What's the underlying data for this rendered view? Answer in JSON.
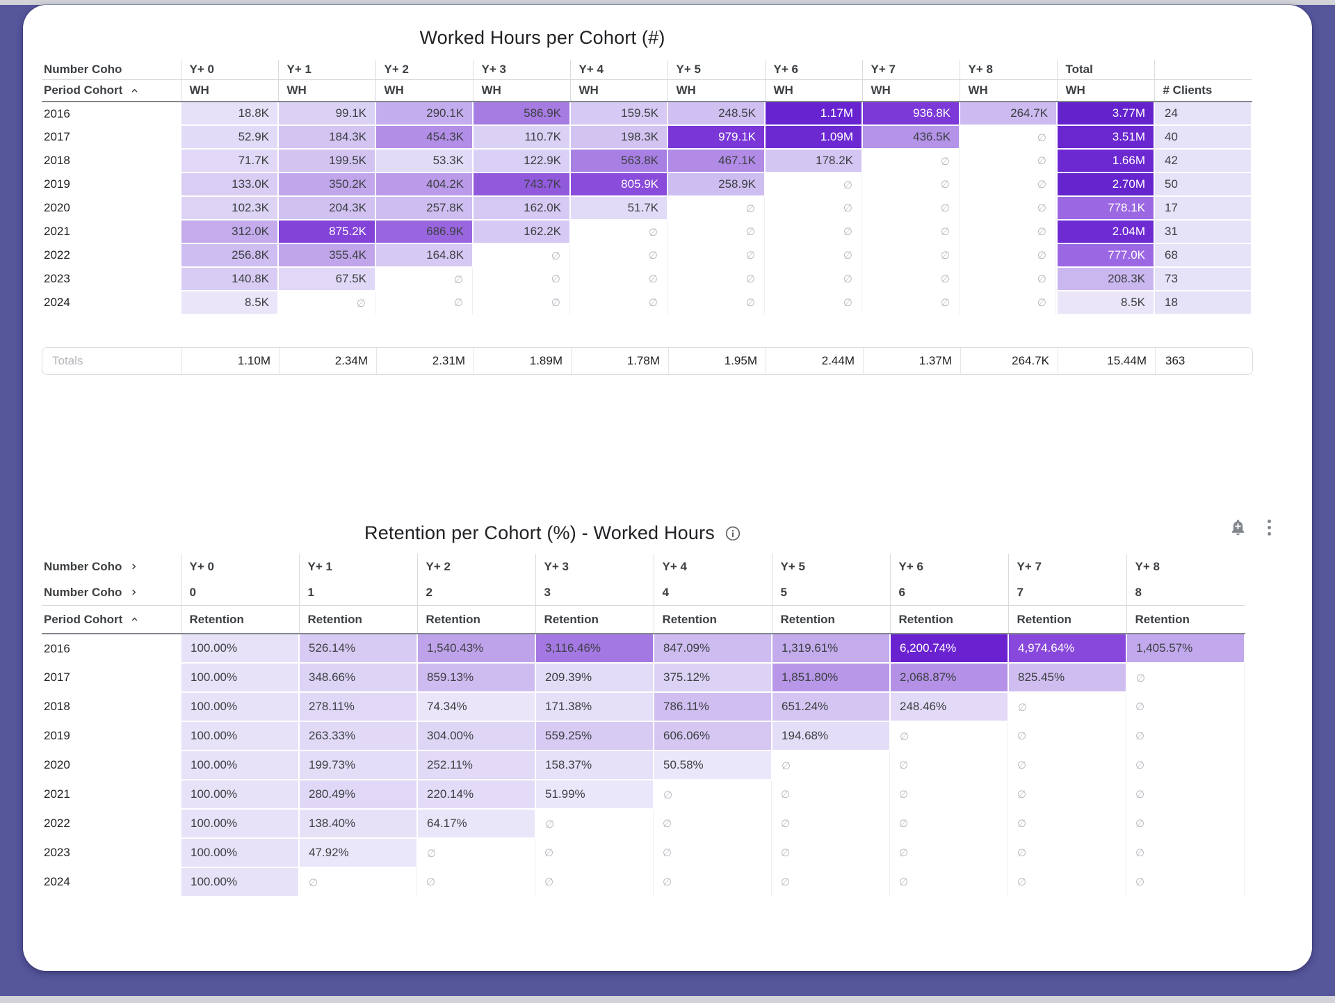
{
  "frame": {
    "background": "#56569b",
    "card_background": "#ffffff"
  },
  "palette": {
    "heatmap_min": "#ebe7fa",
    "heatmap_max": "#6322cc",
    "empty_glyph": "∅",
    "empty_glyph_color": "#b5b8bd"
  },
  "icons": {
    "add_alert": "add-alert-icon",
    "more_options": "more-vert-icon",
    "info": "info-icon",
    "sort_ascending": "chevron-up-icon",
    "expand_group": "chevron-right-icon"
  },
  "table1": {
    "title": "Worked Hours per Cohort (#)",
    "column_group_header": "Number Coho",
    "row_group_header": "Period Cohort",
    "metric_label": "WH",
    "clients_label": "# Clients",
    "columns": [
      "Y+ 0",
      "Y+ 1",
      "Y+ 2",
      "Y+ 3",
      "Y+ 4",
      "Y+ 5",
      "Y+ 6",
      "Y+ 7",
      "Y+ 8",
      "Total"
    ],
    "rows": [
      {
        "year": "2016",
        "clients": "24",
        "cells": [
          {
            "v": "18.8K",
            "bg": "#e6e0f8"
          },
          {
            "v": "99.1K",
            "bg": "#dbd1f5"
          },
          {
            "v": "290.1K",
            "bg": "#c4adee"
          },
          {
            "v": "586.9K",
            "bg": "#a67ce2"
          },
          {
            "v": "159.5K",
            "bg": "#d6c9f3"
          },
          {
            "v": "248.5K",
            "bg": "#cfc0f1"
          },
          {
            "v": "1.17M",
            "bg": "#6823d0",
            "fg": "#ffffff"
          },
          {
            "v": "936.8K",
            "bg": "#7c39d7",
            "fg": "#ffffff"
          },
          {
            "v": "264.7K",
            "bg": "#cdbaf0"
          },
          {
            "v": "3.77M",
            "bg": "#6322cc",
            "fg": "#ffffff"
          }
        ]
      },
      {
        "year": "2017",
        "clients": "40",
        "cells": [
          {
            "v": "52.9K",
            "bg": "#e2dbf7"
          },
          {
            "v": "184.3K",
            "bg": "#d3c4f2"
          },
          {
            "v": "454.3K",
            "bg": "#b28ee7"
          },
          {
            "v": "110.7K",
            "bg": "#dbd1f5"
          },
          {
            "v": "198.3K",
            "bg": "#d2c3f1"
          },
          {
            "v": "979.1K",
            "bg": "#7a36d6",
            "fg": "#ffffff"
          },
          {
            "v": "1.09M",
            "bg": "#6c28d1",
            "fg": "#ffffff"
          },
          {
            "v": "436.5K",
            "bg": "#b493e8"
          },
          null,
          {
            "v": "3.51M",
            "bg": "#6a26cf",
            "fg": "#ffffff"
          }
        ]
      },
      {
        "year": "2018",
        "clients": "42",
        "cells": [
          {
            "v": "71.7K",
            "bg": "#e0d8f6"
          },
          {
            "v": "199.5K",
            "bg": "#d2c3f1"
          },
          {
            "v": "53.3K",
            "bg": "#e2dbf7"
          },
          {
            "v": "122.9K",
            "bg": "#dacff4"
          },
          {
            "v": "563.8K",
            "bg": "#a87fe3"
          },
          {
            "v": "467.1K",
            "bg": "#b18be6"
          },
          {
            "v": "178.2K",
            "bg": "#d4c6f2"
          },
          null,
          null,
          {
            "v": "1.66M",
            "bg": "#6c28d1",
            "fg": "#ffffff"
          }
        ]
      },
      {
        "year": "2019",
        "clients": "50",
        "cells": [
          {
            "v": "133.0K",
            "bg": "#d9cdf4"
          },
          {
            "v": "350.2K",
            "bg": "#c1a6eb"
          },
          {
            "v": "404.2K",
            "bg": "#ba9ae9"
          },
          {
            "v": "743.7K",
            "bg": "#9159dc"
          },
          {
            "v": "805.9K",
            "bg": "#8a4cda",
            "fg": "#ffffff"
          },
          {
            "v": "258.9K",
            "bg": "#cebdf0"
          },
          null,
          null,
          null,
          {
            "v": "2.70M",
            "bg": "#6524cd",
            "fg": "#ffffff"
          }
        ]
      },
      {
        "year": "2020",
        "clients": "17",
        "cells": [
          {
            "v": "102.3K",
            "bg": "#dcd3f5"
          },
          {
            "v": "204.3K",
            "bg": "#d1c1f1"
          },
          {
            "v": "257.8K",
            "bg": "#cebdf0"
          },
          {
            "v": "162.0K",
            "bg": "#d6c9f3"
          },
          {
            "v": "51.7K",
            "bg": "#e2dbf7"
          },
          null,
          null,
          null,
          null,
          {
            "v": "778.1K",
            "bg": "#9c67e2",
            "fg": "#ffffff"
          }
        ]
      },
      {
        "year": "2021",
        "clients": "31",
        "cells": [
          {
            "v": "312.0K",
            "bg": "#c3abec"
          },
          {
            "v": "875.2K",
            "bg": "#8343d8",
            "fg": "#ffffff"
          },
          {
            "v": "686.9K",
            "bg": "#9a66df"
          },
          {
            "v": "162.2K",
            "bg": "#d6c9f3"
          },
          null,
          null,
          null,
          null,
          null,
          {
            "v": "2.04M",
            "bg": "#6e2bd2",
            "fg": "#ffffff"
          }
        ]
      },
      {
        "year": "2022",
        "clients": "68",
        "cells": [
          {
            "v": "256.8K",
            "bg": "#cebdf0"
          },
          {
            "v": "355.4K",
            "bg": "#c0a5ea"
          },
          {
            "v": "164.8K",
            "bg": "#d6c9f3"
          },
          null,
          null,
          null,
          null,
          null,
          null,
          {
            "v": "777.0K",
            "bg": "#9c67e2",
            "fg": "#ffffff"
          }
        ]
      },
      {
        "year": "2023",
        "clients": "73",
        "cells": [
          {
            "v": "140.8K",
            "bg": "#d8ccf4"
          },
          {
            "v": "67.5K",
            "bg": "#e0d8f6"
          },
          null,
          null,
          null,
          null,
          null,
          null,
          null,
          {
            "v": "208.3K",
            "bg": "#cbb7f0"
          }
        ]
      },
      {
        "year": "2024",
        "clients": "18",
        "cells": [
          {
            "v": "8.5K",
            "bg": "#eae5f9"
          },
          null,
          null,
          null,
          null,
          null,
          null,
          null,
          null,
          {
            "v": "8.5K",
            "bg": "#eae5f9"
          }
        ]
      }
    ],
    "totals_label": "Totals",
    "totals": [
      "1.10M",
      "2.34M",
      "2.31M",
      "1.89M",
      "1.78M",
      "1.95M",
      "2.44M",
      "1.37M",
      "264.7K",
      "15.44M"
    ],
    "totals_clients": "363"
  },
  "table2": {
    "title": "Retention per Cohort (%) - Worked Hours",
    "column_group_header": "Number Coho",
    "row_group_header": "Period Cohort",
    "metric_label": "Retention",
    "columns": [
      {
        "label": "Y+ 0",
        "index": "0"
      },
      {
        "label": "Y+ 1",
        "index": "1"
      },
      {
        "label": "Y+ 2",
        "index": "2"
      },
      {
        "label": "Y+ 3",
        "index": "3"
      },
      {
        "label": "Y+ 4",
        "index": "4"
      },
      {
        "label": "Y+ 5",
        "index": "5"
      },
      {
        "label": "Y+ 6",
        "index": "6"
      },
      {
        "label": "Y+ 7",
        "index": "7"
      },
      {
        "label": "Y+ 8",
        "index": "8"
      }
    ],
    "rows": [
      {
        "year": "2016",
        "cells": [
          {
            "v": "100.00%",
            "bg": "#e7e2f8"
          },
          {
            "v": "526.14%",
            "bg": "#d8cbf3"
          },
          {
            "v": "1,540.43%",
            "bg": "#bfa3ea"
          },
          {
            "v": "3,116.46%",
            "bg": "#a478e2"
          },
          {
            "v": "847.09%",
            "bg": "#cebcf0"
          },
          {
            "v": "1,319.61%",
            "bg": "#c3abec"
          },
          {
            "v": "6,200.74%",
            "bg": "#6a22d1",
            "fg": "#ffffff"
          },
          {
            "v": "4,974.64%",
            "bg": "#8948dc",
            "fg": "#ffffff"
          },
          {
            "v": "1,405.57%",
            "bg": "#c2a8ec"
          }
        ]
      },
      {
        "year": "2017",
        "cells": [
          {
            "v": "100.00%",
            "bg": "#e7e2f8"
          },
          {
            "v": "348.66%",
            "bg": "#ddd3f5"
          },
          {
            "v": "859.13%",
            "bg": "#cebbef"
          },
          {
            "v": "209.39%",
            "bg": "#e3dcf7"
          },
          {
            "v": "375.12%",
            "bg": "#dcd2f5"
          },
          {
            "v": "1,851.80%",
            "bg": "#b897e8"
          },
          {
            "v": "2,068.87%",
            "bg": "#b491e7"
          },
          {
            "v": "825.45%",
            "bg": "#cfbdf0"
          },
          null
        ]
      },
      {
        "year": "2018",
        "cells": [
          {
            "v": "100.00%",
            "bg": "#e7e2f8"
          },
          {
            "v": "278.11%",
            "bg": "#e0d8f6"
          },
          {
            "v": "74.34%",
            "bg": "#eae5f9"
          },
          {
            "v": "171.38%",
            "bg": "#e5dff7"
          },
          {
            "v": "786.11%",
            "bg": "#d0bef0"
          },
          {
            "v": "651.24%",
            "bg": "#d4c5f2"
          },
          {
            "v": "248.46%",
            "bg": "#e2daf6"
          },
          null,
          null
        ]
      },
      {
        "year": "2019",
        "cells": [
          {
            "v": "100.00%",
            "bg": "#e7e2f8"
          },
          {
            "v": "263.33%",
            "bg": "#e1d9f6"
          },
          {
            "v": "304.00%",
            "bg": "#dfd6f5"
          },
          {
            "v": "559.25%",
            "bg": "#d7caf3"
          },
          {
            "v": "606.06%",
            "bg": "#d5c7f2"
          },
          {
            "v": "194.68%",
            "bg": "#e4ddf7"
          },
          null,
          null,
          null
        ]
      },
      {
        "year": "2020",
        "cells": [
          {
            "v": "100.00%",
            "bg": "#e7e2f8"
          },
          {
            "v": "199.73%",
            "bg": "#e4ddf7"
          },
          {
            "v": "252.11%",
            "bg": "#e2daf6"
          },
          {
            "v": "158.37%",
            "bg": "#e6e0f8"
          },
          {
            "v": "50.58%",
            "bg": "#ebe7fa"
          },
          null,
          null,
          null,
          null
        ]
      },
      {
        "year": "2021",
        "cells": [
          {
            "v": "100.00%",
            "bg": "#e7e2f8"
          },
          {
            "v": "280.49%",
            "bg": "#e0d8f6"
          },
          {
            "v": "220.14%",
            "bg": "#e3dbf7"
          },
          {
            "v": "51.99%",
            "bg": "#ebe7fa"
          },
          null,
          null,
          null,
          null,
          null
        ]
      },
      {
        "year": "2022",
        "cells": [
          {
            "v": "100.00%",
            "bg": "#e7e2f8"
          },
          {
            "v": "138.40%",
            "bg": "#e7e1f8"
          },
          {
            "v": "64.17%",
            "bg": "#eae6f9"
          },
          null,
          null,
          null,
          null,
          null,
          null
        ]
      },
      {
        "year": "2023",
        "cells": [
          {
            "v": "100.00%",
            "bg": "#e7e2f8"
          },
          {
            "v": "47.92%",
            "bg": "#ebe7fa"
          },
          null,
          null,
          null,
          null,
          null,
          null,
          null
        ]
      },
      {
        "year": "2024",
        "cells": [
          {
            "v": "100.00%",
            "bg": "#e7e2f8"
          },
          null,
          null,
          null,
          null,
          null,
          null,
          null,
          null
        ]
      }
    ]
  }
}
